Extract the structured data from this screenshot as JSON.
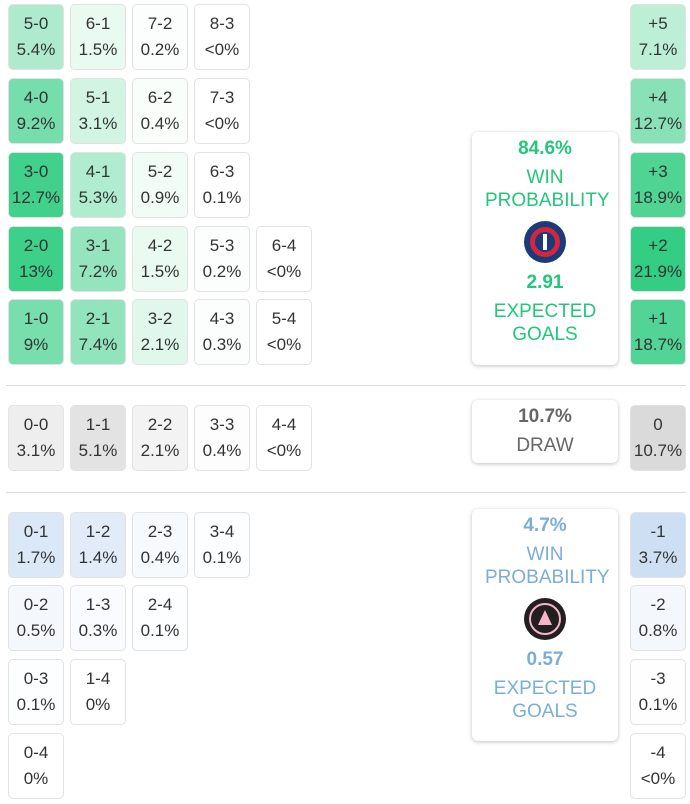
{
  "home": {
    "rows": [
      [
        {
          "score": "5-0",
          "prob": "5.4%"
        },
        {
          "score": "6-1",
          "prob": "1.5%"
        },
        {
          "score": "7-2",
          "prob": "0.2%"
        },
        {
          "score": "8-3",
          "prob": "<0%"
        }
      ],
      [
        {
          "score": "4-0",
          "prob": "9.2%"
        },
        {
          "score": "5-1",
          "prob": "3.1%"
        },
        {
          "score": "6-2",
          "prob": "0.4%"
        },
        {
          "score": "7-3",
          "prob": "<0%"
        }
      ],
      [
        {
          "score": "3-0",
          "prob": "12.7%"
        },
        {
          "score": "4-1",
          "prob": "5.3%"
        },
        {
          "score": "5-2",
          "prob": "0.9%"
        },
        {
          "score": "6-3",
          "prob": "0.1%"
        }
      ],
      [
        {
          "score": "2-0",
          "prob": "13%"
        },
        {
          "score": "3-1",
          "prob": "7.2%"
        },
        {
          "score": "4-2",
          "prob": "1.5%"
        },
        {
          "score": "5-3",
          "prob": "0.2%"
        },
        {
          "score": "6-4",
          "prob": "<0%"
        }
      ],
      [
        {
          "score": "1-0",
          "prob": "9%"
        },
        {
          "score": "2-1",
          "prob": "7.4%"
        },
        {
          "score": "3-2",
          "prob": "2.1%"
        },
        {
          "score": "4-3",
          "prob": "0.3%"
        },
        {
          "score": "5-4",
          "prob": "<0%"
        }
      ]
    ],
    "margins": [
      {
        "margin": "+5",
        "prob": "7.1%"
      },
      {
        "margin": "+4",
        "prob": "12.7%"
      },
      {
        "margin": "+3",
        "prob": "18.9%"
      },
      {
        "margin": "+2",
        "prob": "21.9%"
      },
      {
        "margin": "+1",
        "prob": "18.7%"
      }
    ],
    "panel": {
      "probability": "84.6%",
      "label": "WIN PROBABILITY",
      "xg": "2.91",
      "xg_label": "EXPECTED GOALS"
    }
  },
  "draw": {
    "rows": [
      [
        {
          "score": "0-0",
          "prob": "3.1%"
        },
        {
          "score": "1-1",
          "prob": "5.1%"
        },
        {
          "score": "2-2",
          "prob": "2.1%"
        },
        {
          "score": "3-3",
          "prob": "0.4%"
        },
        {
          "score": "4-4",
          "prob": "<0%"
        }
      ]
    ],
    "margins": [
      {
        "margin": "0",
        "prob": "10.7%"
      }
    ],
    "panel": {
      "probability": "10.7%",
      "label": "DRAW"
    }
  },
  "away": {
    "rows": [
      [
        {
          "score": "0-1",
          "prob": "1.7%"
        },
        {
          "score": "1-2",
          "prob": "1.4%"
        },
        {
          "score": "2-3",
          "prob": "0.4%"
        },
        {
          "score": "3-4",
          "prob": "0.1%"
        }
      ],
      [
        {
          "score": "0-2",
          "prob": "0.5%"
        },
        {
          "score": "1-3",
          "prob": "0.3%"
        },
        {
          "score": "2-4",
          "prob": "0.1%"
        }
      ],
      [
        {
          "score": "0-3",
          "prob": "0.1%"
        },
        {
          "score": "1-4",
          "prob": "0%"
        }
      ],
      [
        {
          "score": "0-4",
          "prob": "0%"
        }
      ]
    ],
    "margins": [
      {
        "margin": "-1",
        "prob": "3.7%"
      },
      {
        "margin": "-2",
        "prob": "0.8%"
      },
      {
        "margin": "-3",
        "prob": "0.1%"
      },
      {
        "margin": "-4",
        "prob": "<0%"
      }
    ],
    "panel": {
      "probability": "4.7%",
      "label": "WIN PROBABILITY",
      "xg": "0.57",
      "xg_label": "EXPECTED GOALS"
    }
  }
}
